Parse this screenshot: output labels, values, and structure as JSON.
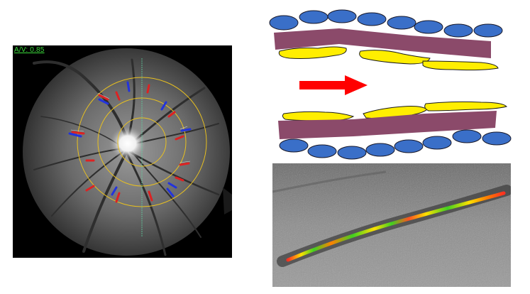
{
  "fundus": {
    "av_ratio_label": "A/V: 0.85"
  },
  "colors": {
    "vein_marker": "#2233dd",
    "artery_marker": "#dd2222",
    "measurement_ring": "#e8c020",
    "vessel_band": "#8b4a6a",
    "cell_blue": "#3a6fc8",
    "cell_yellow": "#ffee00",
    "arrow": "#ff0000"
  }
}
